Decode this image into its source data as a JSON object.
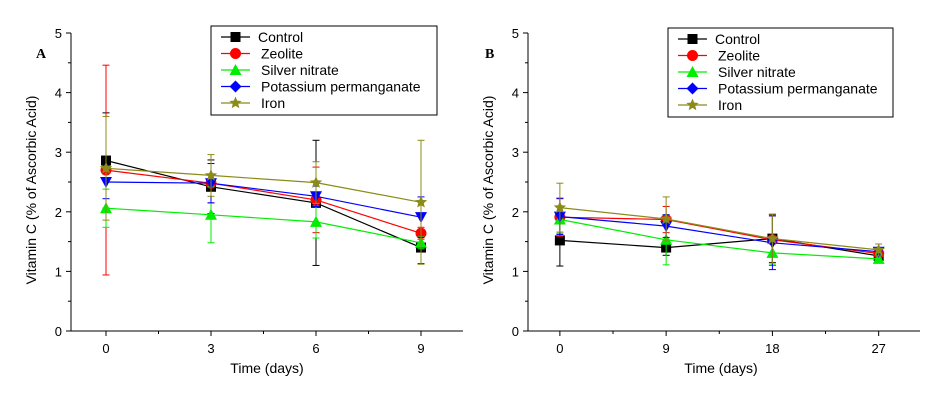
{
  "chart_data": [
    {
      "type": "line",
      "panel": "A",
      "title": "",
      "xlabel": "Time (days)",
      "ylabel": "Vitamin C (% of Ascorbic Acid)",
      "x": [
        0,
        3,
        6,
        9
      ],
      "xticks": [
        "0",
        "3",
        "6",
        "9"
      ],
      "xlim": [
        -1,
        10.2
      ],
      "ylim": [
        0,
        5
      ],
      "yticks": [
        "0",
        "1",
        "2",
        "3",
        "4",
        "5"
      ],
      "grid": false,
      "legend_position": "top-right",
      "series": [
        {
          "name": "Control",
          "color": "#000000",
          "marker": "square",
          "values": [
            2.86,
            2.42,
            2.15,
            1.4
          ],
          "errors": [
            0.8,
            0.45,
            1.05,
            0.27
          ]
        },
        {
          "name": "Zeolite",
          "color": "#ff0000",
          "marker": "circle",
          "values": [
            2.7,
            2.48,
            2.2,
            1.64
          ],
          "errors": [
            1.76,
            0.33,
            0.55,
            0.1
          ]
        },
        {
          "name": "Silver nitrate",
          "color": "#00ee00",
          "marker": "triangle-up",
          "values": [
            2.06,
            1.95,
            1.83,
            1.48
          ],
          "errors": [
            0.32,
            0.47,
            0.27,
            0.1
          ]
        },
        {
          "name": "Potassium permanganate",
          "color": "#0000ff",
          "marker": "triangle-down",
          "values": [
            2.5,
            2.48,
            2.26,
            1.91
          ],
          "errors": [
            0.28,
            0.33,
            0.17,
            0.34
          ]
        },
        {
          "name": "Iron",
          "color": "#8b8b1a",
          "marker": "star",
          "values": [
            2.73,
            2.61,
            2.49,
            2.16
          ],
          "errors": [
            0.87,
            0.35,
            0.35,
            1.04
          ]
        }
      ]
    },
    {
      "type": "line",
      "panel": "B",
      "title": "",
      "xlabel": "Time (days)",
      "ylabel": "Vitamin C (% of Ascorbic Acid)",
      "x": [
        0,
        9,
        18,
        27
      ],
      "xticks": [
        "0",
        "9",
        "18",
        "27"
      ],
      "xlim": [
        -2.7,
        30.5
      ],
      "ylim": [
        0,
        5
      ],
      "yticks": [
        "0",
        "1",
        "2",
        "3",
        "4",
        "5"
      ],
      "grid": false,
      "legend_position": "top-right",
      "series": [
        {
          "name": "Control",
          "color": "#000000",
          "marker": "square",
          "values": [
            1.52,
            1.4,
            1.55,
            1.26
          ],
          "errors": [
            0.43,
            0.13,
            0.4,
            0.1
          ]
        },
        {
          "name": "Zeolite",
          "color": "#ff0000",
          "marker": "circle",
          "values": [
            1.91,
            1.87,
            1.53,
            1.3
          ],
          "errors": [
            0.32,
            0.22,
            0.43,
            0.08
          ]
        },
        {
          "name": "Silver nitrate",
          "color": "#00ee00",
          "marker": "triangle-up",
          "values": [
            1.87,
            1.53,
            1.31,
            1.21
          ],
          "errors": [
            0.23,
            0.42,
            0.2,
            0.07
          ]
        },
        {
          "name": "Potassium permanganate",
          "color": "#0000ff",
          "marker": "triangle-down",
          "values": [
            1.92,
            1.76,
            1.48,
            1.33
          ],
          "errors": [
            0.3,
            0.19,
            0.45,
            0.07
          ]
        },
        {
          "name": "Iron",
          "color": "#8b8b1a",
          "marker": "star",
          "values": [
            2.07,
            1.88,
            1.55,
            1.36
          ],
          "errors": [
            0.41,
            0.37,
            0.41,
            0.1
          ]
        }
      ]
    }
  ]
}
